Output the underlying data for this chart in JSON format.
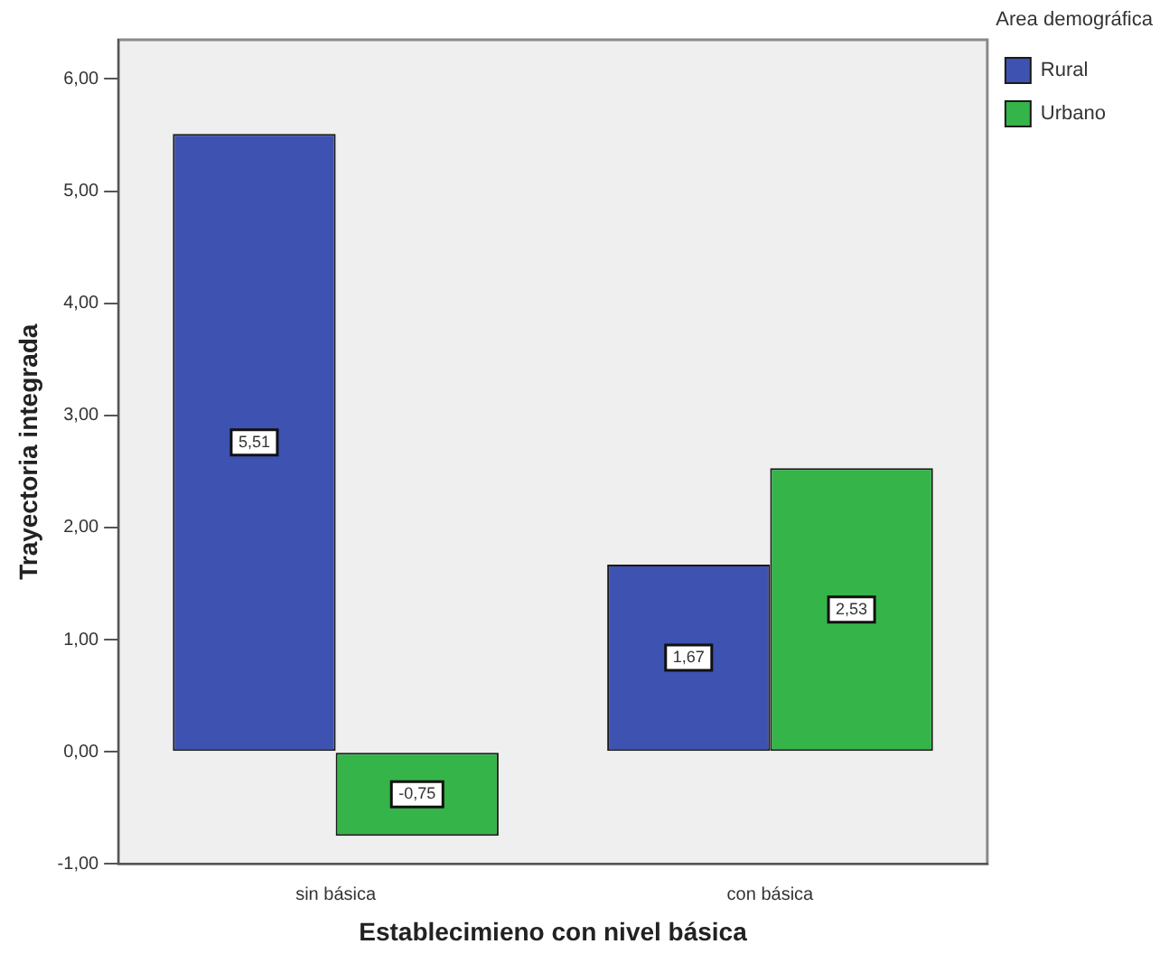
{
  "chart_data": {
    "type": "bar",
    "xlabel": "Establecimieno con nivel básica",
    "ylabel": "Trayectoria integrada",
    "legend_title": "Area demográfica",
    "categories": [
      "sin básica",
      "con básica"
    ],
    "series": [
      {
        "name": "Rural",
        "color": "#3d52b1",
        "values": [
          5.51,
          1.67
        ],
        "value_labels": [
          "5,51",
          "1,67"
        ]
      },
      {
        "name": "Urbano",
        "color": "#35b449",
        "values": [
          -0.75,
          2.53
        ],
        "value_labels": [
          "-0,75",
          "2,53"
        ]
      }
    ],
    "ylim": [
      -1,
      6.35
    ],
    "yticks": [
      {
        "value": -1,
        "label": "-1,00"
      },
      {
        "value": 0,
        "label": "0,00"
      },
      {
        "value": 1,
        "label": "1,00"
      },
      {
        "value": 2,
        "label": "2,00"
      },
      {
        "value": 3,
        "label": "3,00"
      },
      {
        "value": 4,
        "label": "4,00"
      },
      {
        "value": 5,
        "label": "5,00"
      },
      {
        "value": 6,
        "label": "6,00"
      }
    ],
    "grid": false,
    "legend": "top right"
  }
}
